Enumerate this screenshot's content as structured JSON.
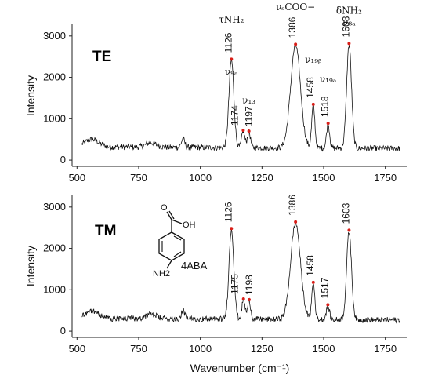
{
  "chart_data": [
    {
      "type": "line",
      "panel": "TE",
      "panel_label": "TE",
      "xlabel": "",
      "ylabel": "Intensity",
      "xlim": [
        480,
        1840
      ],
      "ylim": [
        -150,
        3300
      ],
      "xticks": [
        500,
        750,
        1000,
        1250,
        1500,
        1750
      ],
      "yticks": [
        0,
        1000,
        2000,
        3000
      ],
      "grid": false,
      "baseline": 320,
      "peaks": [
        {
          "x": 1126,
          "y": 2440,
          "label": "1126"
        },
        {
          "x": 1174,
          "y": 720,
          "label": "1174"
        },
        {
          "x": 1197,
          "y": 700,
          "label": "1197"
        },
        {
          "x": 1386,
          "y": 2800,
          "label": "1386"
        },
        {
          "x": 1458,
          "y": 1350,
          "label": "1458"
        },
        {
          "x": 1518,
          "y": 890,
          "label": "1518"
        },
        {
          "x": 1603,
          "y": 2820,
          "label": "1603"
        }
      ],
      "mode_labels": [
        {
          "text": "τNH₂",
          "x": 1126,
          "y": 3320
        },
        {
          "text": "νₛCOO−",
          "x": 1386,
          "y": 3620
        },
        {
          "text": "δNH₂",
          "x": 1603,
          "y": 3540
        },
        {
          "text": "ν₈ₐ",
          "x": 1603,
          "y": 3250
        },
        {
          "text": "ν₉ₐ",
          "x": 1126,
          "y": 2060
        },
        {
          "text": "ν₁₃",
          "x": 1197,
          "y": 1370
        },
        {
          "text": "ν₁₉ᵦ",
          "x": 1458,
          "y": 2350
        },
        {
          "text": "ν₁₉ₐ",
          "x": 1518,
          "y": 1880
        }
      ]
    },
    {
      "type": "line",
      "panel": "TM",
      "panel_label": "TM",
      "xlabel": "Wavenumber (cm⁻¹)",
      "ylabel": "Intensity",
      "xlim": [
        480,
        1840
      ],
      "ylim": [
        -150,
        3300
      ],
      "xticks": [
        500,
        750,
        1000,
        1250,
        1500,
        1750
      ],
      "yticks": [
        0,
        1000,
        2000,
        3000
      ],
      "grid": false,
      "baseline": 310,
      "peaks": [
        {
          "x": 1126,
          "y": 2480,
          "label": "1126"
        },
        {
          "x": 1175,
          "y": 780,
          "label": "1175"
        },
        {
          "x": 1198,
          "y": 760,
          "label": "1198"
        },
        {
          "x": 1386,
          "y": 2640,
          "label": "1386"
        },
        {
          "x": 1458,
          "y": 1180,
          "label": "1458"
        },
        {
          "x": 1517,
          "y": 640,
          "label": "1517"
        },
        {
          "x": 1603,
          "y": 2440,
          "label": "1603"
        }
      ],
      "molecule_label": "4ABA",
      "molecule_atoms": [
        "O",
        "OH",
        "NH2"
      ]
    }
  ]
}
